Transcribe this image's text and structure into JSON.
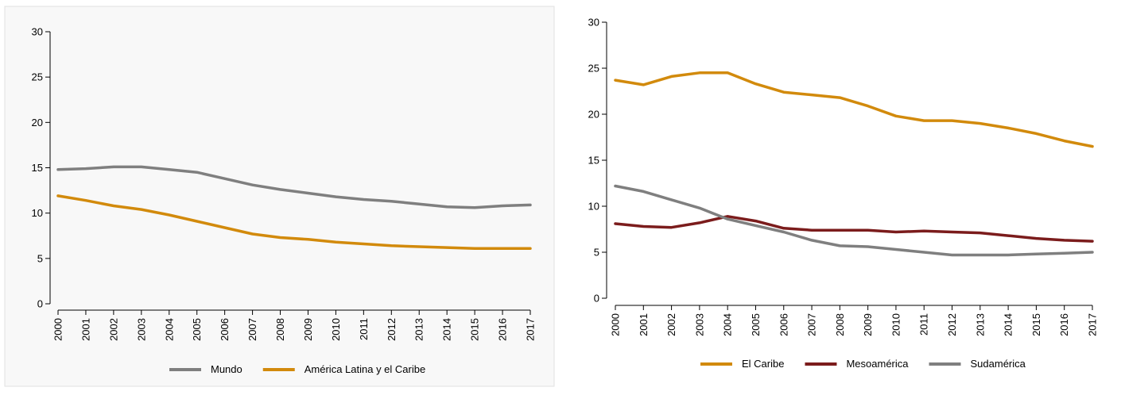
{
  "chart_data": [
    {
      "type": "line",
      "title": "",
      "xlabel": "",
      "ylabel": "",
      "x": [
        "2000",
        "2001",
        "2002",
        "2003",
        "2004",
        "2005",
        "2006",
        "2007",
        "2008",
        "2009",
        "2010",
        "2011",
        "2012",
        "2013",
        "2014",
        "2015",
        "2016",
        "2017"
      ],
      "ylim": [
        0,
        30
      ],
      "yticks": [
        0,
        5,
        10,
        15,
        20,
        25,
        30
      ],
      "grid": false,
      "legend_position": "bottom",
      "series": [
        {
          "name": "Mundo",
          "color": "#7f7f7f",
          "values": [
            14.8,
            14.9,
            15.1,
            15.1,
            14.8,
            14.5,
            13.8,
            13.1,
            12.6,
            12.2,
            11.8,
            11.5,
            11.3,
            11.0,
            10.7,
            10.6,
            10.8,
            10.9
          ]
        },
        {
          "name": "América Latina y el Caribe",
          "color": "#d28a0c",
          "values": [
            11.9,
            11.4,
            10.8,
            10.4,
            9.8,
            9.1,
            8.4,
            7.7,
            7.3,
            7.1,
            6.8,
            6.6,
            6.4,
            6.3,
            6.2,
            6.1,
            6.1,
            6.1
          ]
        }
      ]
    },
    {
      "type": "line",
      "title": "",
      "xlabel": "",
      "ylabel": "",
      "x": [
        "2000",
        "2001",
        "2002",
        "2003",
        "2004",
        "2005",
        "2006",
        "2007",
        "2008",
        "2009",
        "2010",
        "2011",
        "2012",
        "2013",
        "2014",
        "2015",
        "2016",
        "2017"
      ],
      "ylim": [
        0,
        30
      ],
      "yticks": [
        0,
        5,
        10,
        15,
        20,
        25,
        30
      ],
      "grid": false,
      "legend_position": "bottom",
      "series": [
        {
          "name": "El Caribe",
          "color": "#d28a0c",
          "values": [
            23.7,
            23.2,
            24.1,
            24.5,
            24.5,
            23.3,
            22.4,
            22.1,
            21.8,
            20.9,
            19.8,
            19.3,
            19.3,
            19.0,
            18.5,
            17.9,
            17.1,
            16.5
          ]
        },
        {
          "name": "Mesoamérica",
          "color": "#7b1c1c",
          "values": [
            8.1,
            7.8,
            7.7,
            8.2,
            8.9,
            8.4,
            7.6,
            7.4,
            7.4,
            7.4,
            7.2,
            7.3,
            7.2,
            7.1,
            6.8,
            6.5,
            6.3,
            6.2
          ]
        },
        {
          "name": "Sudamérica",
          "color": "#7f7f7f",
          "values": [
            12.2,
            11.6,
            10.7,
            9.8,
            8.6,
            7.9,
            7.2,
            6.3,
            5.7,
            5.6,
            5.3,
            5.0,
            4.7,
            4.7,
            4.7,
            4.8,
            4.9,
            5.0
          ]
        }
      ]
    }
  ]
}
